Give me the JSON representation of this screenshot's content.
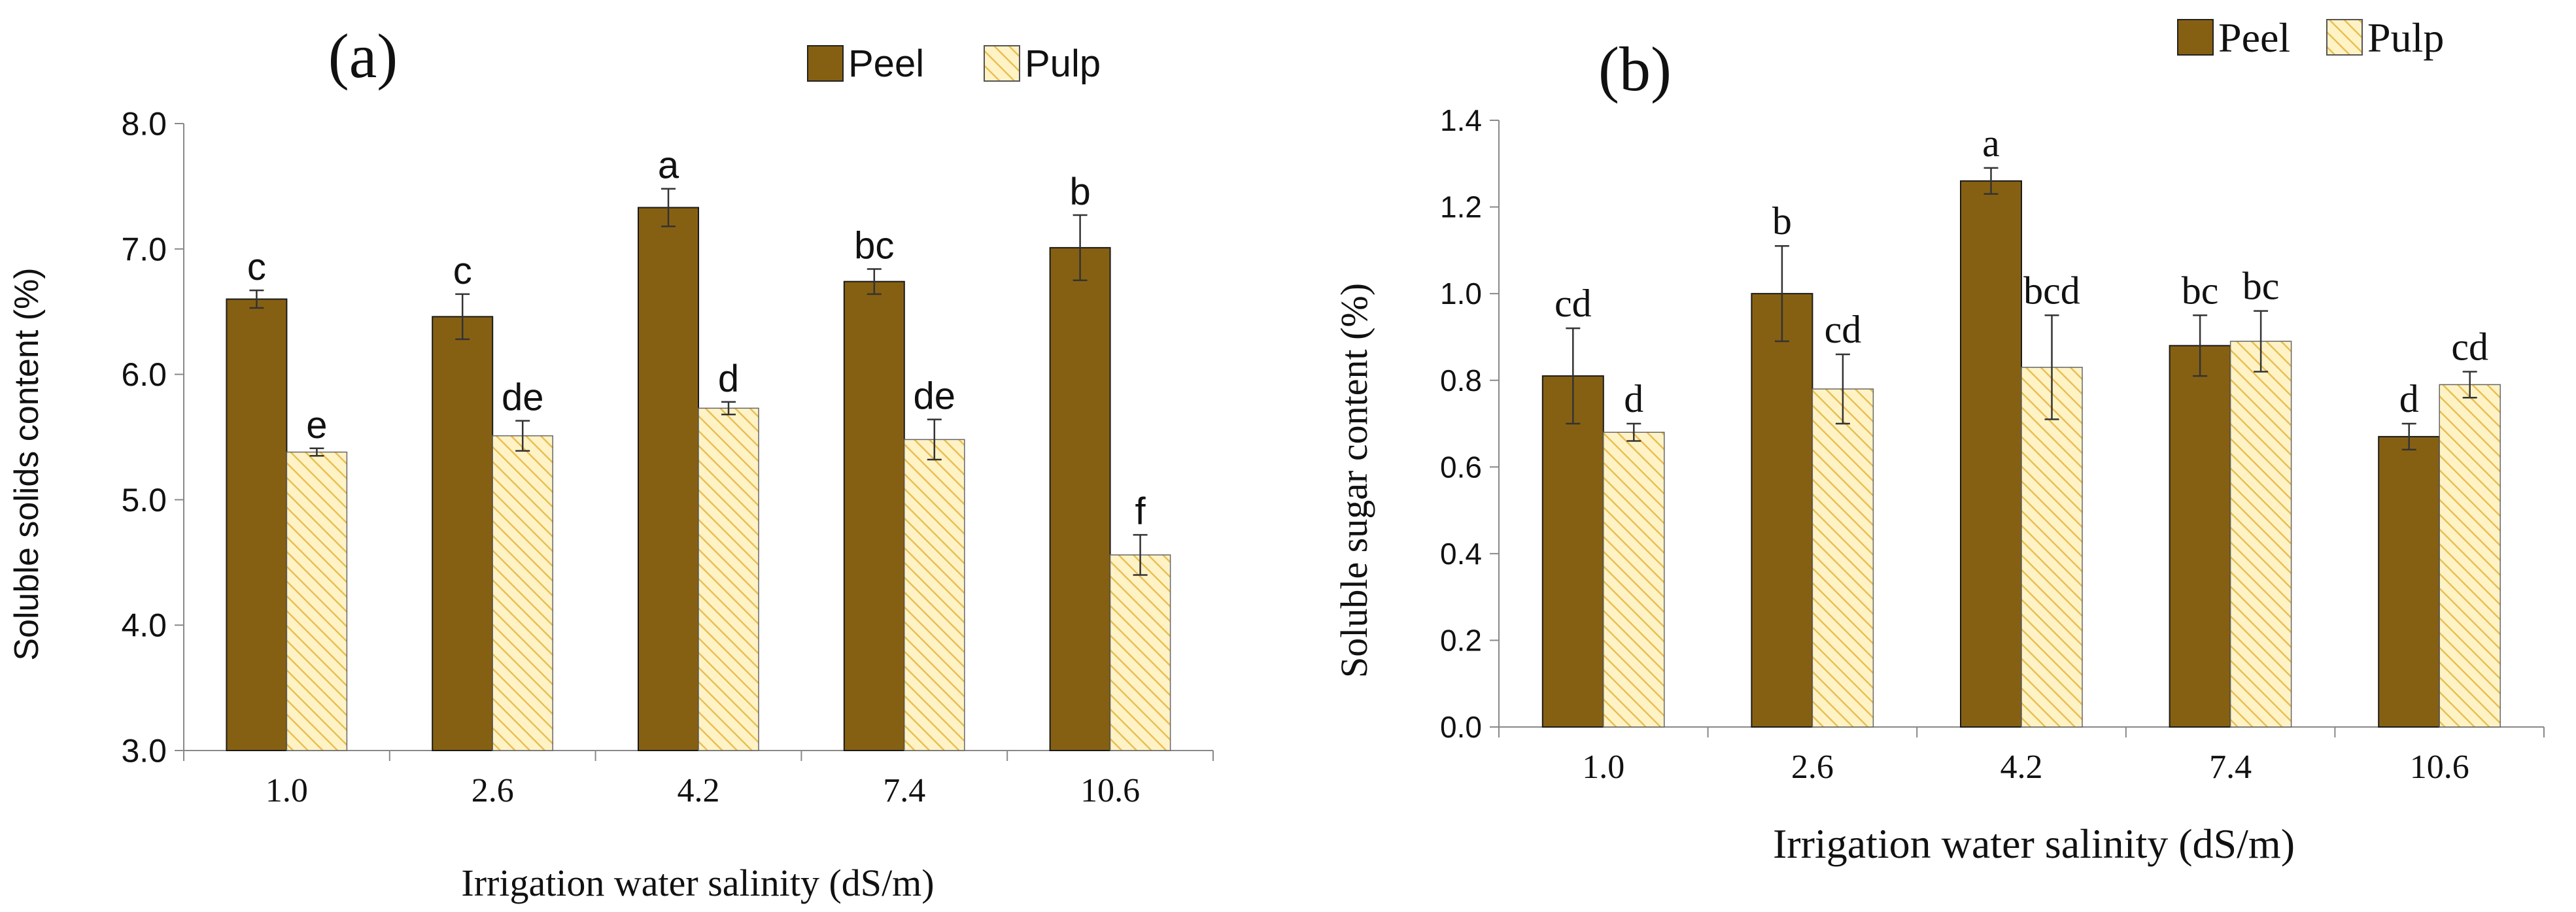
{
  "chart_data": [
    {
      "type": "bar",
      "panel_label": "(a)",
      "xlabel": "Irrigation water salinity (dS/m)",
      "ylabel": "Soluble solids content (%)",
      "ylim": [
        3.0,
        8.0
      ],
      "yticks": [
        3.0,
        4.0,
        5.0,
        6.0,
        7.0,
        8.0
      ],
      "ytick_labels": [
        "3.0",
        "4.0",
        "5.0",
        "6.0",
        "7.0",
        "8.0"
      ],
      "grid": false,
      "legend_position": "top-center",
      "categories": [
        "1.0",
        "2.6",
        "4.2",
        "7.4",
        "10.6"
      ],
      "series": [
        {
          "name": "Peel",
          "values": [
            6.6,
            6.46,
            7.33,
            6.74,
            7.01
          ],
          "errors": [
            0.07,
            0.18,
            0.15,
            0.1,
            0.26
          ],
          "labels": [
            "c",
            "c",
            "a",
            "bc",
            "b"
          ]
        },
        {
          "name": "Pulp",
          "values": [
            5.38,
            5.51,
            5.73,
            5.48,
            4.56
          ],
          "errors": [
            0.03,
            0.12,
            0.05,
            0.16,
            0.16
          ],
          "labels": [
            "e",
            "de",
            "d",
            "de",
            "f"
          ]
        }
      ]
    },
    {
      "type": "bar",
      "panel_label": "(b)",
      "xlabel": "Irrigation water salinity (dS/m)",
      "ylabel": "Soluble sugar content (%)",
      "ylim": [
        0.0,
        1.4
      ],
      "yticks": [
        0.0,
        0.2,
        0.4,
        0.6,
        0.8,
        1.0,
        1.2,
        1.4
      ],
      "ytick_labels": [
        "0.0",
        "0.2",
        "0.4",
        "0.6",
        "0.8",
        "1.0",
        "1.2",
        "1.4"
      ],
      "grid": false,
      "legend_position": "top-right",
      "categories": [
        "1.0",
        "2.6",
        "4.2",
        "7.4",
        "10.6"
      ],
      "series": [
        {
          "name": "Peel",
          "values": [
            0.81,
            1.0,
            1.26,
            0.88,
            0.67
          ],
          "errors": [
            0.11,
            0.11,
            0.03,
            0.07,
            0.03
          ],
          "labels": [
            "cd",
            "b",
            "a",
            "bc",
            "d"
          ]
        },
        {
          "name": "Pulp",
          "values": [
            0.68,
            0.78,
            0.83,
            0.89,
            0.79
          ],
          "errors": [
            0.02,
            0.08,
            0.12,
            0.07,
            0.03
          ],
          "labels": [
            "d",
            "cd",
            "bcd",
            "bc",
            "cd"
          ]
        }
      ]
    }
  ],
  "colors": {
    "peel_fill": "#866012",
    "pulp_fill": "#FFF3C6",
    "pulp_stripe": "#E9BF52",
    "axis": "#888888",
    "text": "#111111"
  }
}
